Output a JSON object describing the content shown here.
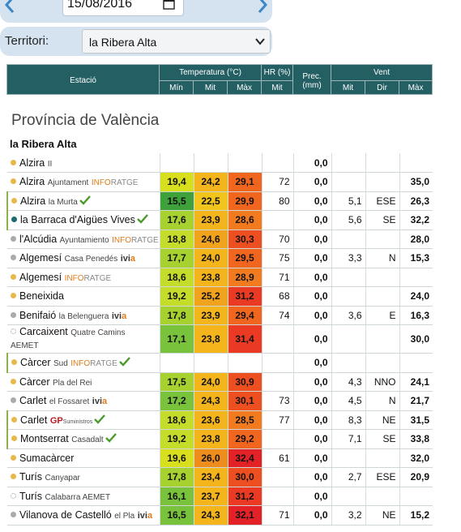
{
  "date_bar": {
    "date": "15/08/2016"
  },
  "territory": {
    "label": "Territori:",
    "selected": "la Ribera Alta"
  },
  "header": {
    "station": "Estació",
    "temperature": "Temperatura (°C)",
    "humidity": "HR (%)",
    "precipitation": "Prec. (mm)",
    "wind": "Vent",
    "t_min": "Mín",
    "t_mit": "Mit",
    "t_max": "Màx",
    "hr_mit": "Mit",
    "w_mit": "Mit",
    "w_dir": "Dir",
    "w_max": "Màx"
  },
  "province": "Província de València",
  "comarca": "la Ribera Alta",
  "colors": {
    "header_bg": "#235f63",
    "bar_bg": "#d4e3ef",
    "arrow": "#3a87c8",
    "check": "#4b9a2a",
    "inforatge": "#e07b1a",
    "ivia_a": "#e07b1a"
  },
  "rows": [
    {
      "name": "Alzira",
      "sub": "II",
      "dot": "#e8b84a",
      "min": "",
      "mit": "",
      "max": "",
      "hr": "",
      "prec": "0,0",
      "wmit": "",
      "wdir": "",
      "wmax": ""
    },
    {
      "name": "Alzira",
      "sub": "Ajuntament",
      "brand": "INFORATGE",
      "dot": "#e8b84a",
      "min": "19,4",
      "mit": "24,2",
      "max": "29,1",
      "hr": "72",
      "prec": "0,0",
      "wmit": "",
      "wdir": "",
      "wmax": "35,0"
    },
    {
      "name": "Alzira",
      "sub": "la Murta",
      "check": true,
      "dot": "#e8b84a",
      "min": "15,5",
      "mit": "22,5",
      "max": "29,9",
      "hr": "80",
      "prec": "0,0",
      "wmit": "5,1",
      "wdir": "ESE",
      "wmax": "26,3"
    },
    {
      "name": "la Barraca d'Aigües Vives",
      "check": true,
      "dot": "#1d6b6f",
      "min": "17,6",
      "mit": "23,9",
      "max": "28,6",
      "hr": "",
      "prec": "0,0",
      "wmit": "5,6",
      "wdir": "SE",
      "wmax": "32,2"
    },
    {
      "name": "l'Alcúdia",
      "sub": "Ayuntamiento",
      "brand": "INFORATGE",
      "dot": "#aaaaaa",
      "min": "18,8",
      "mit": "24,6",
      "max": "30,3",
      "hr": "70",
      "prec": "0,0",
      "wmit": "",
      "wdir": "",
      "wmax": "28,0"
    },
    {
      "name": "Algemesí",
      "sub": "Casa Penedés",
      "ivia": "ivia",
      "dot": "#aaaaaa",
      "min": "17,7",
      "mit": "24,0",
      "max": "29,5",
      "hr": "75",
      "prec": "0,0",
      "wmit": "3,3",
      "wdir": "N",
      "wmax": "15,3"
    },
    {
      "name": "Algemesí",
      "brand": "INFORATGE",
      "dot": "#e8b84a",
      "min": "18,6",
      "mit": "23,8",
      "max": "28,9",
      "hr": "71",
      "prec": "0,0",
      "wmit": "",
      "wdir": "",
      "wmax": ""
    },
    {
      "name": "Beneixida",
      "dot": "#e8b84a",
      "min": "19,2",
      "mit": "25,2",
      "max": "31,2",
      "hr": "68",
      "prec": "0,0",
      "wmit": "",
      "wdir": "",
      "wmax": "24,0"
    },
    {
      "name": "Benifaió",
      "sub": "la Belenguera",
      "ivia": "ivia",
      "dot": "#aaaaaa",
      "min": "17,8",
      "mit": "23,9",
      "max": "29,4",
      "hr": "74",
      "prec": "0,0",
      "wmit": "3,6",
      "wdir": "E",
      "wmax": "16,3"
    },
    {
      "name": "Carcaixent",
      "sub": "Quatre Camins",
      "line2": "AEMET",
      "dot": "#ffffff",
      "tall": true,
      "min": "17,1",
      "mit": "23,8",
      "max": "31,4",
      "hr": "",
      "prec": "0,0",
      "wmit": "",
      "wdir": "",
      "wmax": "30,0"
    },
    {
      "name": "Càrcer",
      "sub": "Sud",
      "brand": "INFORATGE",
      "check": true,
      "dot": "#e8b84a",
      "min": "",
      "mit": "",
      "max": "",
      "hr": "",
      "prec": "0,0",
      "wmit": "",
      "wdir": "",
      "wmax": ""
    },
    {
      "name": "Càrcer",
      "sub": "Pla del Rei",
      "dot": "#e8b84a",
      "min": "17,5",
      "mit": "24,0",
      "max": "30,9",
      "hr": "",
      "prec": "0,0",
      "wmit": "4,3",
      "wdir": "NNO",
      "wmax": "24,1"
    },
    {
      "name": "Carlet",
      "sub": "el Fossaret",
      "ivia": "ivia",
      "dot": "#aaaaaa",
      "min": "17,2",
      "mit": "24,3",
      "max": "30,1",
      "hr": "73",
      "prec": "0,0",
      "wmit": "4,5",
      "wdir": "N",
      "wmax": "21,7"
    },
    {
      "name": "Carlet",
      "gp": "GP",
      "gp_sub": "Suministros",
      "check": true,
      "dot": "#e8b84a",
      "min": "18,6",
      "mit": "23,6",
      "max": "28,5",
      "hr": "77",
      "prec": "0,0",
      "wmit": "8,3",
      "wdir": "NE",
      "wmax": "31,5"
    },
    {
      "name": "Montserrat",
      "sub": "Casadalt",
      "check": true,
      "dot": "#e8b84a",
      "min": "19,2",
      "mit": "23,8",
      "max": "29,2",
      "hr": "",
      "prec": "0,0",
      "wmit": "7,1",
      "wdir": "SE",
      "wmax": "33,8"
    },
    {
      "name": "Sumacàrcer",
      "dot": "#e8b84a",
      "min": "19,6",
      "mit": "26,0",
      "max": "32,4",
      "hr": "61",
      "prec": "0,0",
      "wmit": "",
      "wdir": "",
      "wmax": "32,0"
    },
    {
      "name": "Turís",
      "sub": "Canyapar",
      "dot": "#e8b84a",
      "min": "17,8",
      "mit": "23,4",
      "max": "30,0",
      "hr": "",
      "prec": "0,0",
      "wmit": "2,7",
      "wdir": "ESE",
      "wmax": "20,9"
    },
    {
      "name": "Turís",
      "sub": "Calabarra AEMET",
      "dot": "#ffffff",
      "min": "16,1",
      "mit": "23,7",
      "max": "31,2",
      "hr": "",
      "prec": "0,0",
      "wmit": "",
      "wdir": "",
      "wmax": ""
    },
    {
      "name": "Vilanova de Castelló",
      "sub": "el Pla",
      "ivia": "ivia",
      "dot": "#aaaaaa",
      "min": "16,5",
      "mit": "24,3",
      "max": "32,1",
      "hr": "71",
      "prec": "0,0",
      "wmit": "3,2",
      "wdir": "NE",
      "wmax": "15,2"
    }
  ]
}
